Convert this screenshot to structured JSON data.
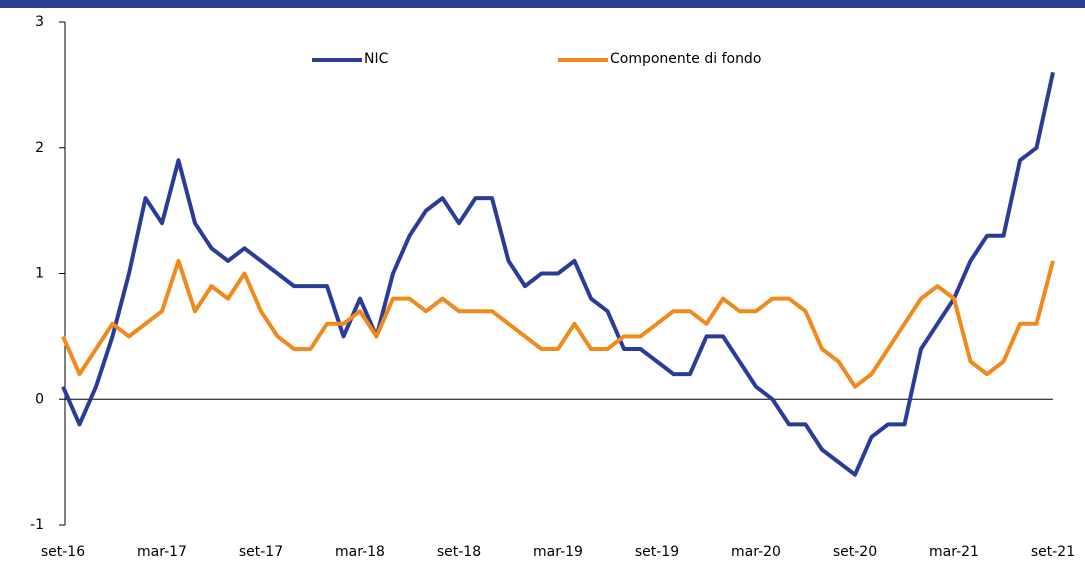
{
  "chart_data": {
    "type": "line",
    "categories": [
      "set-16",
      null,
      null,
      null,
      null,
      null,
      "mar-17",
      null,
      null,
      null,
      null,
      null,
      "set-17",
      null,
      null,
      null,
      null,
      null,
      "mar-18",
      null,
      null,
      null,
      null,
      null,
      "set-18",
      null,
      null,
      null,
      null,
      null,
      "mar-19",
      null,
      null,
      null,
      null,
      null,
      "set-19",
      null,
      null,
      null,
      null,
      null,
      "mar-20",
      null,
      null,
      null,
      null,
      null,
      "set-20",
      null,
      null,
      null,
      null,
      null,
      "mar-21",
      null,
      null,
      null,
      null,
      null,
      "set-21"
    ],
    "series": [
      {
        "name": "NIC",
        "color": "#2b3c98",
        "values": [
          0.1,
          -0.2,
          0.1,
          0.5,
          1.0,
          1.6,
          1.4,
          1.9,
          1.4,
          1.2,
          1.1,
          1.2,
          1.1,
          1.0,
          0.9,
          0.9,
          0.9,
          0.5,
          0.8,
          0.5,
          1.0,
          1.3,
          1.5,
          1.6,
          1.4,
          1.6,
          1.6,
          1.1,
          0.9,
          1.0,
          1.0,
          1.1,
          0.8,
          0.7,
          0.4,
          0.4,
          0.3,
          0.2,
          0.2,
          0.5,
          0.5,
          0.3,
          0.1,
          0.0,
          -0.2,
          -0.2,
          -0.4,
          -0.5,
          -0.6,
          -0.3,
          -0.2,
          -0.2,
          0.4,
          0.6,
          0.8,
          1.1,
          1.3,
          1.3,
          1.9,
          2.0,
          2.6
        ]
      },
      {
        "name": "Componente di fondo",
        "color": "#f08a1c",
        "values": [
          0.5,
          0.2,
          0.4,
          0.6,
          0.5,
          0.6,
          0.7,
          1.1,
          0.7,
          0.9,
          0.8,
          1.0,
          0.7,
          0.5,
          0.4,
          0.4,
          0.6,
          0.6,
          0.7,
          0.5,
          0.8,
          0.8,
          0.7,
          0.8,
          0.7,
          0.7,
          0.7,
          0.6,
          0.5,
          0.4,
          0.4,
          0.6,
          0.4,
          0.4,
          0.5,
          0.5,
          0.6,
          0.7,
          0.7,
          0.6,
          0.8,
          0.7,
          0.7,
          0.8,
          0.8,
          0.7,
          0.4,
          0.3,
          0.1,
          0.2,
          0.4,
          0.6,
          0.8,
          0.9,
          0.8,
          0.3,
          0.2,
          0.3,
          0.6,
          0.6,
          1.1
        ]
      }
    ],
    "ylim": [
      -1,
      3
    ],
    "yticks": [
      -1,
      0,
      1,
      2,
      3
    ]
  }
}
